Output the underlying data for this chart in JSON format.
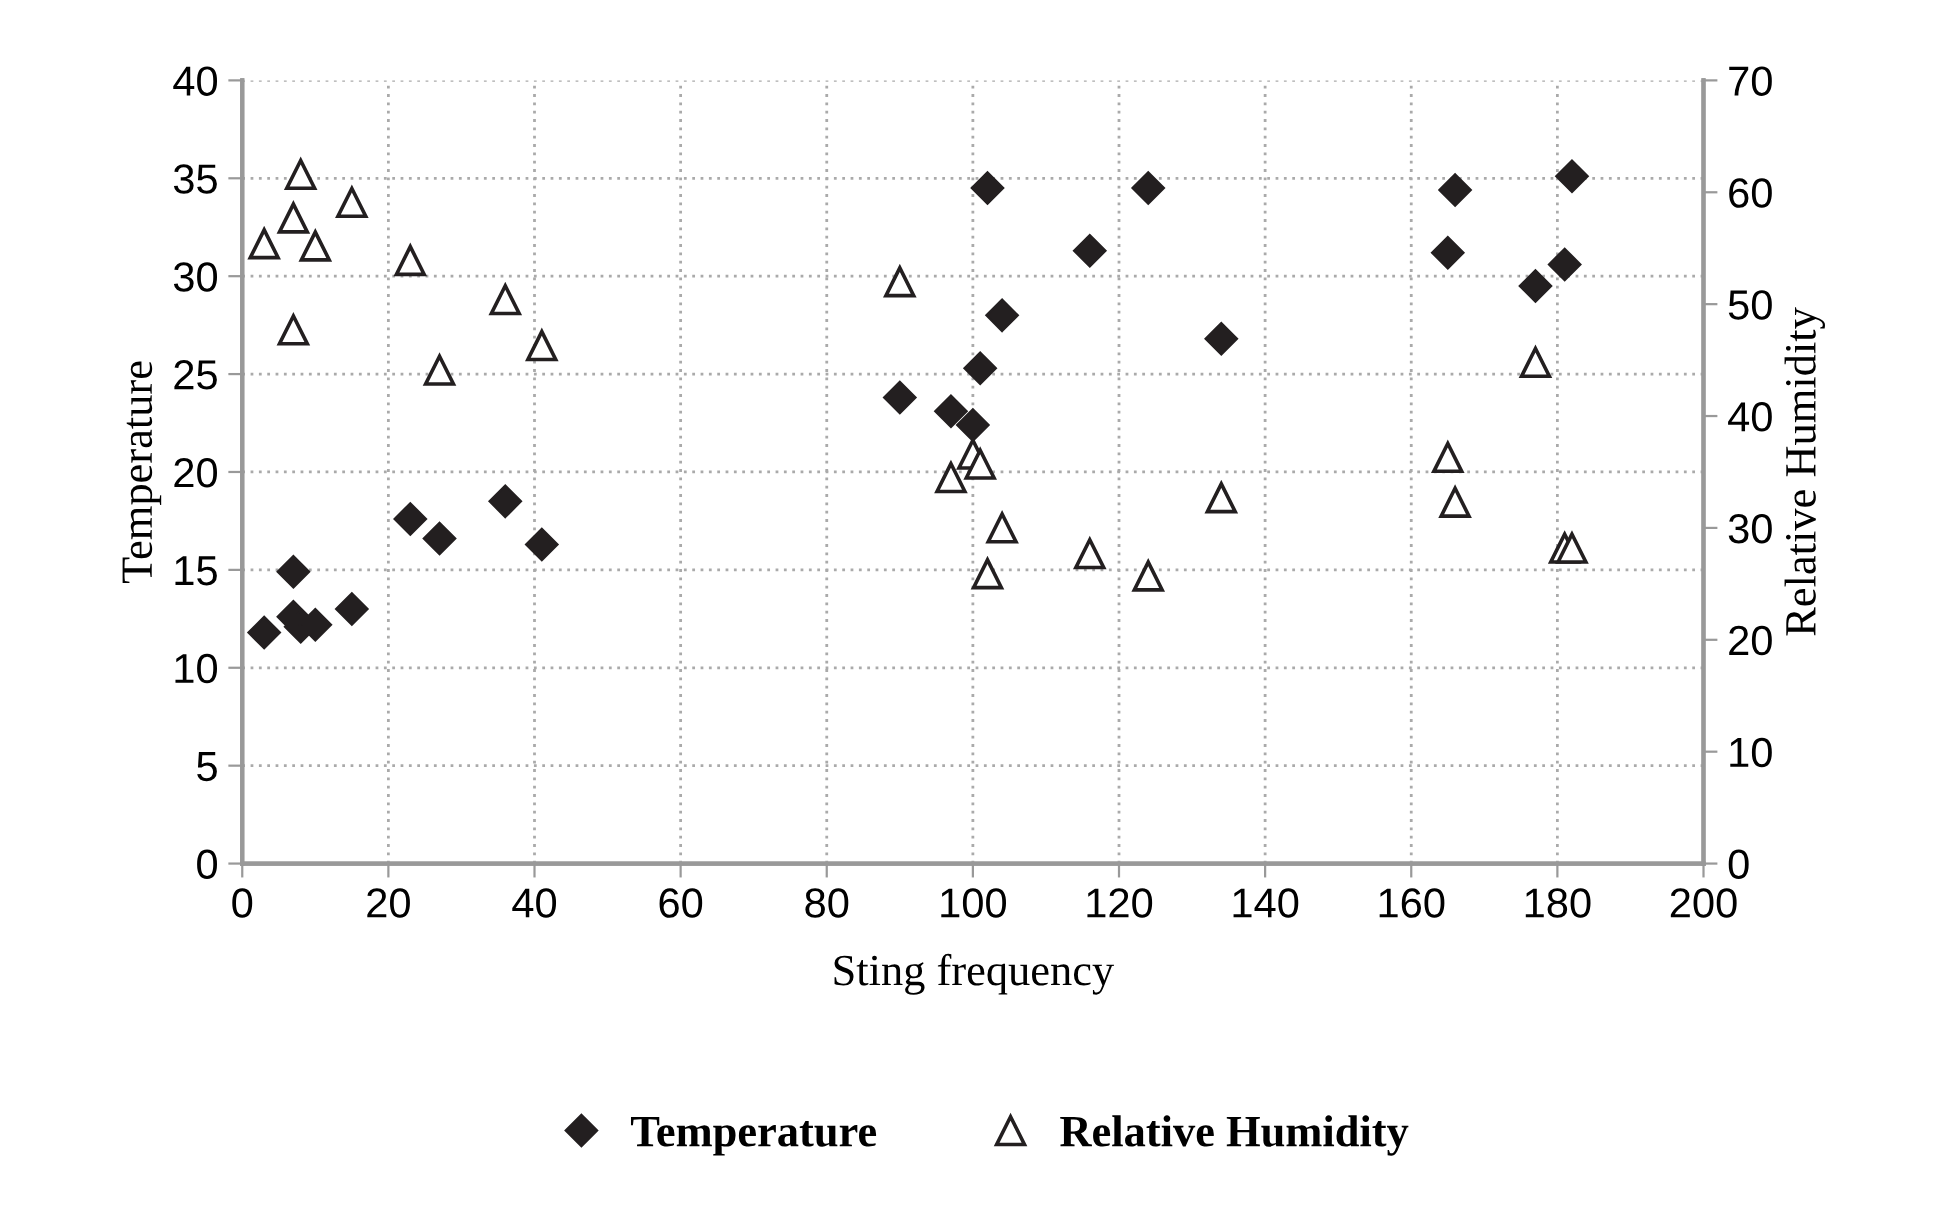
{
  "chart_data": {
    "type": "scatter",
    "xlabel": "Sting frequency",
    "ylabel": "Temperature",
    "y2label": "Relative Humidity",
    "series": [
      {
        "name": "Temperature",
        "color": "#231f20",
        "marker": "diamond",
        "x": [
          3,
          7,
          7,
          8,
          10,
          15,
          23,
          27,
          36,
          41,
          90,
          97,
          100,
          101,
          102,
          104,
          116,
          124,
          134,
          165,
          166,
          177,
          181,
          182
        ],
        "values": [
          11.8,
          14.9,
          12.6,
          12.1,
          12.2,
          13.0,
          17.6,
          16.6,
          18.5,
          16.3,
          23.8,
          23.1,
          22.4,
          25.3,
          34.5,
          28.0,
          31.3,
          34.5,
          26.8,
          31.2,
          34.4,
          29.5,
          30.6,
          35.1
        ]
      },
      {
        "name": "Relative Humidity",
        "color": "#231f20",
        "marker": "triangle",
        "axis": "y2",
        "x": [
          3,
          7,
          7,
          8,
          10,
          15,
          23,
          27,
          36,
          41,
          90,
          97,
          100,
          101,
          102,
          104,
          116,
          124,
          134,
          165,
          166,
          177,
          181,
          182
        ],
        "values": [
          55.4,
          57.7,
          47.7,
          61.6,
          55.2,
          59.1,
          53.9,
          44.1,
          50.4,
          46.3,
          52.0,
          34.5,
          36.6,
          35.7,
          25.9,
          30.0,
          27.7,
          25.7,
          32.7,
          36.3,
          32.3,
          44.8,
          28.2,
          28.2
        ]
      }
    ],
    "xlim": [
      0,
      200
    ],
    "xticks": [
      0,
      20,
      40,
      60,
      80,
      100,
      120,
      140,
      160,
      180,
      200
    ],
    "ylim": [
      0,
      40
    ],
    "yticks": [
      0,
      5,
      10,
      15,
      20,
      25,
      30,
      35,
      40
    ],
    "y2lim": [
      0,
      70
    ],
    "y2ticks": [
      0,
      10,
      20,
      30,
      40,
      50,
      60,
      70
    ],
    "grid": true,
    "legend": "bottom"
  }
}
